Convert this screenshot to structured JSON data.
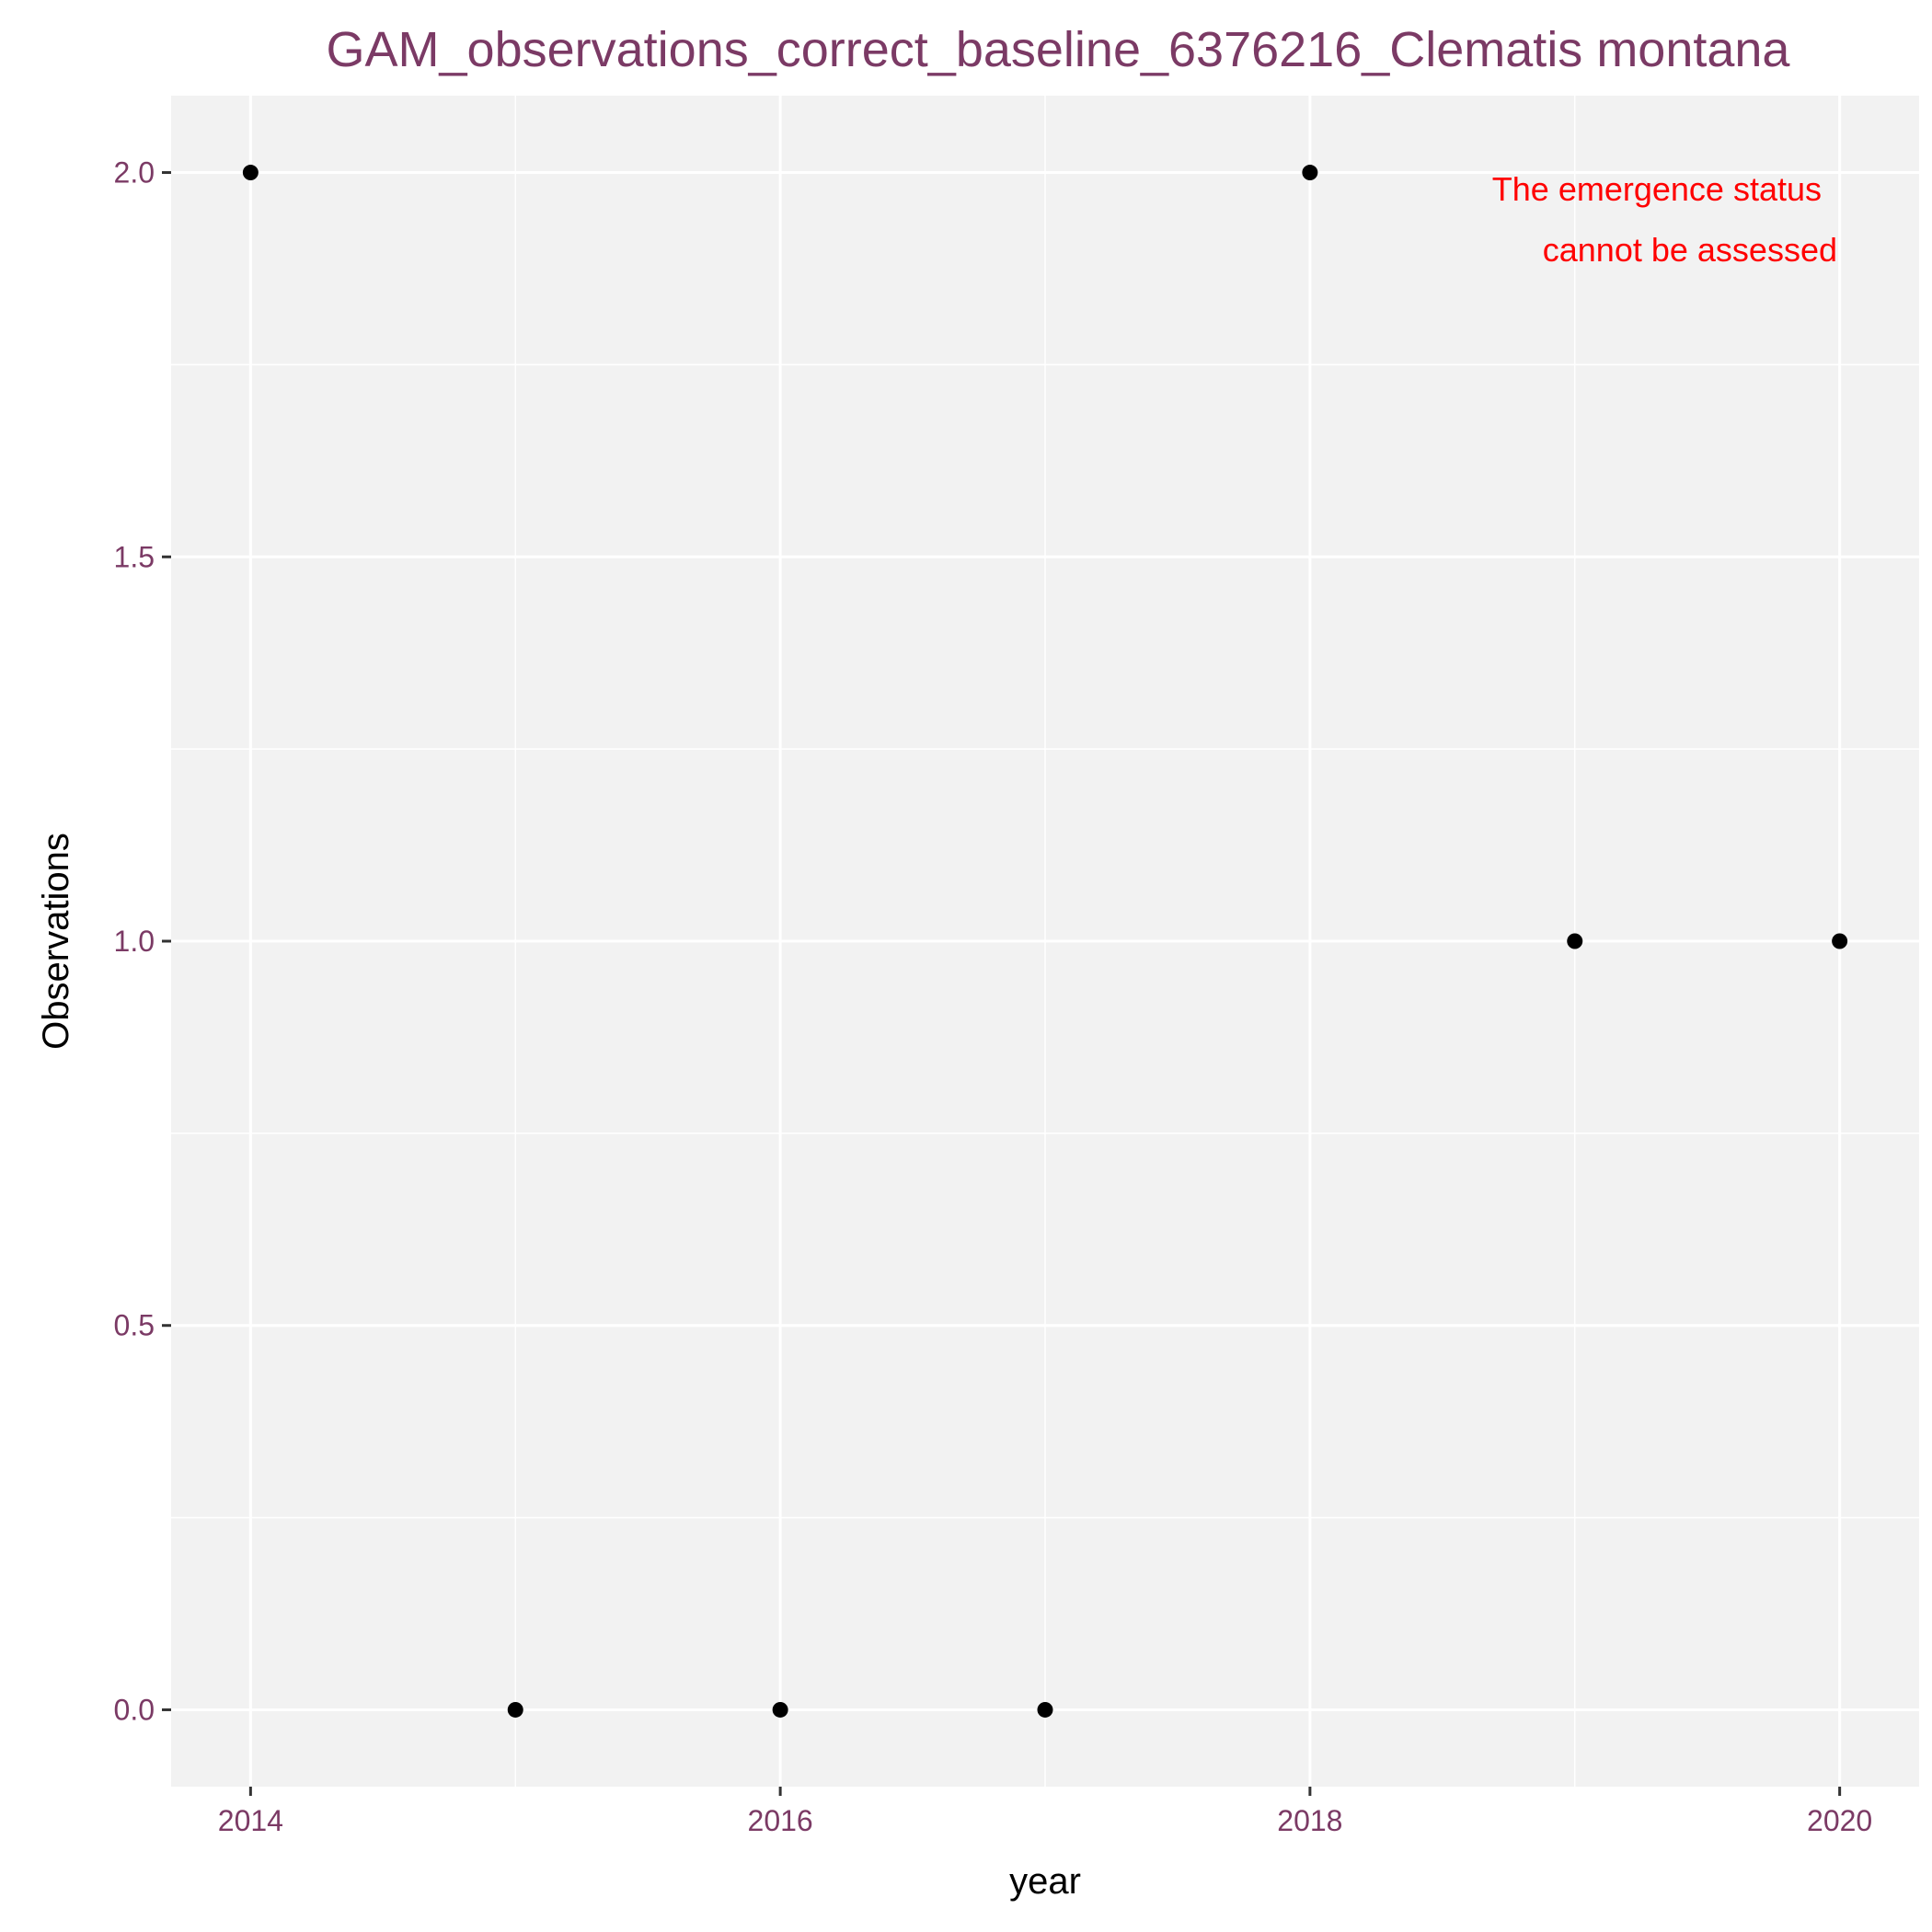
{
  "colors": {
    "title": "#7b3a65",
    "tick_label": "#7b3a65",
    "panel_background": "#f2f2f2",
    "grid": "#ffffff",
    "point": "#000000",
    "annotation": "#ff0000"
  },
  "chart_data": {
    "type": "scatter",
    "title": "GAM_observations_correct_baseline_6376216_Clematis montana",
    "xlabel": "year",
    "ylabel": "Observations",
    "xlim": [
      2013.7,
      2020.3
    ],
    "ylim": [
      -0.1,
      2.1
    ],
    "x_ticks": [
      2014,
      2016,
      2018,
      2020
    ],
    "y_ticks": [
      0.0,
      0.5,
      1.0,
      1.5,
      2.0
    ],
    "x_tick_labels": [
      "2014",
      "2016",
      "2018",
      "2020"
    ],
    "y_tick_labels": [
      "0.0",
      "0.5",
      "1.0",
      "1.5",
      "2.0"
    ],
    "grid": true,
    "points": [
      {
        "x": 2014,
        "y": 2
      },
      {
        "x": 2015,
        "y": 0
      },
      {
        "x": 2016,
        "y": 0
      },
      {
        "x": 2017,
        "y": 0
      },
      {
        "x": 2018,
        "y": 2
      },
      {
        "x": 2019,
        "y": 1
      },
      {
        "x": 2020,
        "y": 1
      }
    ],
    "annotation": {
      "lines": [
        "The emergence status",
        "cannot be assessed"
      ],
      "placement": "top-right"
    }
  }
}
